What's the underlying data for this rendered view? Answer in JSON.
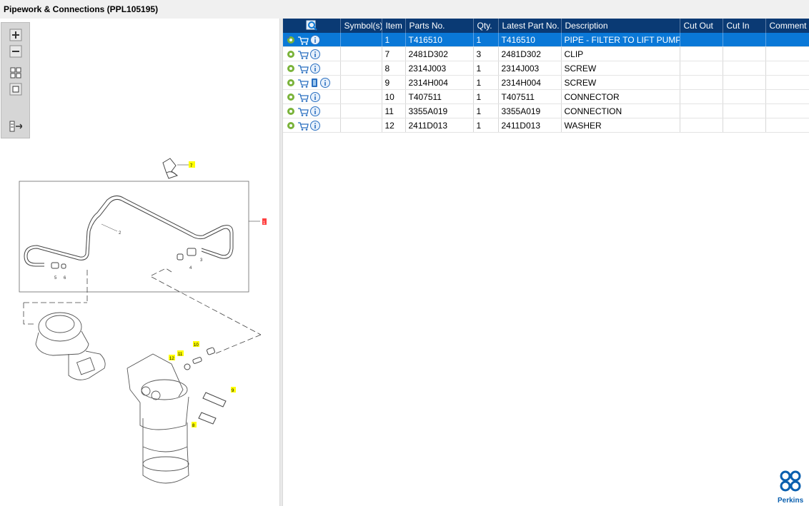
{
  "title": "Pipework & Connections (PPL105195)",
  "toolbar": {
    "zoom_in": "zoom-in-icon",
    "zoom_out": "zoom-out-icon",
    "fit": "fit-icon",
    "actual": "actual-size-icon",
    "export": "export-icon"
  },
  "diagram": {
    "callouts": [
      "7",
      "2",
      "3",
      "4",
      "5",
      "6",
      "1",
      "10",
      "11",
      "12",
      "9",
      "8"
    ]
  },
  "table": {
    "columns": [
      "Symbol(s)",
      "Item",
      "Parts No.",
      "Qty.",
      "Latest Part No.",
      "Description",
      "Cut Out",
      "Cut In",
      "Comment"
    ],
    "rows": [
      {
        "item": "1",
        "parts_no": "T416510",
        "qty": "1",
        "latest": "T416510",
        "description": "PIPE - FILTER TO LIFT PUMP"
      },
      {
        "item": "7",
        "parts_no": "2481D302",
        "qty": "3",
        "latest": "2481D302",
        "description": "CLIP"
      },
      {
        "item": "8",
        "parts_no": "2314J003",
        "qty": "1",
        "latest": "2314J003",
        "description": "SCREW"
      },
      {
        "item": "9",
        "parts_no": "2314H004",
        "qty": "1",
        "latest": "2314H004",
        "description": "SCREW"
      },
      {
        "item": "10",
        "parts_no": "T407511",
        "qty": "1",
        "latest": "T407511",
        "description": "CONNECTOR"
      },
      {
        "item": "11",
        "parts_no": "3355A019",
        "qty": "1",
        "latest": "3355A019",
        "description": "CONNECTION"
      },
      {
        "item": "12",
        "parts_no": "2411D013",
        "qty": "1",
        "latest": "2411D013",
        "description": "WASHER"
      }
    ]
  },
  "brand": "Perkins",
  "colors": {
    "header": "#0a3a74",
    "selected": "#0a78d7",
    "callout_yellow": "#ffff00",
    "callout_red": "#ff4040"
  }
}
